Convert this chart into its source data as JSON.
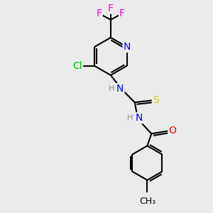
{
  "bg_color": "#ebebeb",
  "bond_color": "#000000",
  "bond_width": 1.5,
  "atom_colors": {
    "F": "#ff00cc",
    "Cl": "#00bb00",
    "N": "#0000ff",
    "O": "#ff0000",
    "S": "#cccc00",
    "H": "#888888",
    "C": "#000000"
  },
  "font_size_large": 10,
  "font_size_small": 8
}
